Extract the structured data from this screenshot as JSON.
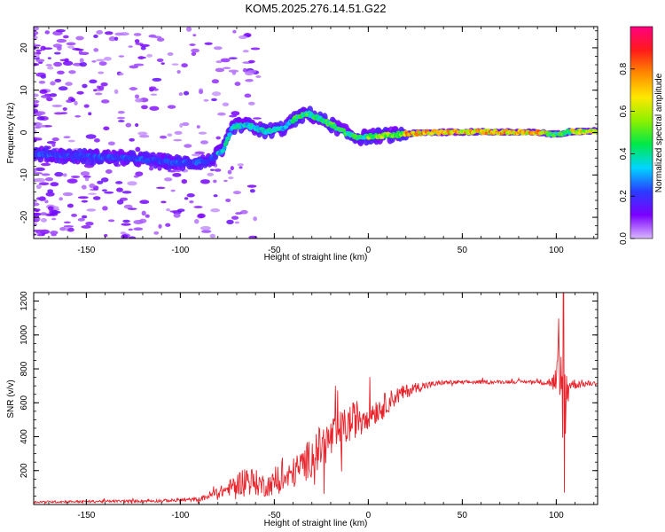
{
  "title": "KOM5.2025.276.14.51.G22",
  "chart_data": [
    {
      "type": "heatmap",
      "title": "KOM5.2025.276.14.51.G22",
      "xlabel": "Height of straight line (km)",
      "ylabel": "Frequency (Hz)",
      "xlim": [
        -178,
        122
      ],
      "ylim": [
        -25,
        25
      ],
      "xticks": [
        -150,
        -100,
        -50,
        0,
        50,
        100
      ],
      "yticks": [
        -20,
        -10,
        0,
        10,
        20
      ],
      "colorbar": {
        "label": "Normalized spectral amplitude",
        "range": [
          0,
          1
        ],
        "ticks": [
          "0.0",
          "0.2",
          "0.4",
          "0.6",
          "0.8"
        ],
        "colors": [
          "#d9b8ff",
          "#7a00ff",
          "#2a3cff",
          "#00d5ff",
          "#00e84a",
          "#8df000",
          "#ffe800",
          "#ff8c00",
          "#ff1a1a",
          "#ff0080"
        ]
      },
      "ridge": [
        {
          "x": -178,
          "y": -5
        },
        {
          "x": -160,
          "y": -5.5
        },
        {
          "x": -140,
          "y": -5.8
        },
        {
          "x": -120,
          "y": -6.3
        },
        {
          "x": -100,
          "y": -7.2
        },
        {
          "x": -85,
          "y": -6.8
        },
        {
          "x": -77,
          "y": -4
        },
        {
          "x": -72,
          "y": 1.5
        },
        {
          "x": -65,
          "y": 1.8
        },
        {
          "x": -55,
          "y": 0.3
        },
        {
          "x": -45,
          "y": 1
        },
        {
          "x": -38,
          "y": 3.5
        },
        {
          "x": -32,
          "y": 4.5
        },
        {
          "x": -25,
          "y": 3
        },
        {
          "x": -18,
          "y": 1.5
        },
        {
          "x": -10,
          "y": -0.5
        },
        {
          "x": -5,
          "y": -1.2
        },
        {
          "x": 5,
          "y": -0.8
        },
        {
          "x": 15,
          "y": -0.5
        },
        {
          "x": 30,
          "y": 0
        },
        {
          "x": 60,
          "y": 0.2
        },
        {
          "x": 90,
          "y": 0
        },
        {
          "x": 100,
          "y": -0.4
        },
        {
          "x": 107,
          "y": 0.2
        },
        {
          "x": 122,
          "y": 0.4
        }
      ]
    },
    {
      "type": "line",
      "xlabel": "Height of straight line (km)",
      "ylabel": "SNR (v/v)",
      "xlim": [
        -178,
        122
      ],
      "ylim": [
        0,
        1250
      ],
      "xticks": [
        -150,
        -100,
        -50,
        0,
        50,
        100
      ],
      "yticks": [
        200,
        400,
        600,
        800,
        1000,
        1200
      ],
      "series_color": "#e8222a",
      "envelope": [
        {
          "x": -178,
          "base": 15,
          "amp": 10
        },
        {
          "x": -110,
          "base": 22,
          "amp": 15
        },
        {
          "x": -90,
          "base": 30,
          "amp": 20
        },
        {
          "x": -75,
          "base": 90,
          "amp": 70
        },
        {
          "x": -65,
          "base": 150,
          "amp": 150
        },
        {
          "x": -55,
          "base": 110,
          "amp": 110
        },
        {
          "x": -45,
          "base": 140,
          "amp": 120
        },
        {
          "x": -35,
          "base": 230,
          "amp": 180
        },
        {
          "x": -25,
          "base": 340,
          "amp": 220
        },
        {
          "x": -15,
          "base": 430,
          "amp": 200
        },
        {
          "x": -5,
          "base": 520,
          "amp": 180
        },
        {
          "x": 5,
          "base": 560,
          "amp": 130
        },
        {
          "x": 15,
          "base": 640,
          "amp": 90
        },
        {
          "x": 25,
          "base": 690,
          "amp": 50
        },
        {
          "x": 40,
          "base": 720,
          "amp": 20
        },
        {
          "x": 90,
          "base": 725,
          "amp": 15
        },
        {
          "x": 98,
          "base": 720,
          "amp": 60
        },
        {
          "x": 101,
          "base": 700,
          "amp": 320
        },
        {
          "x": 104,
          "base": 600,
          "amp": 550
        },
        {
          "x": 107,
          "base": 710,
          "amp": 60
        },
        {
          "x": 122,
          "base": 715,
          "amp": 15
        }
      ]
    }
  ]
}
